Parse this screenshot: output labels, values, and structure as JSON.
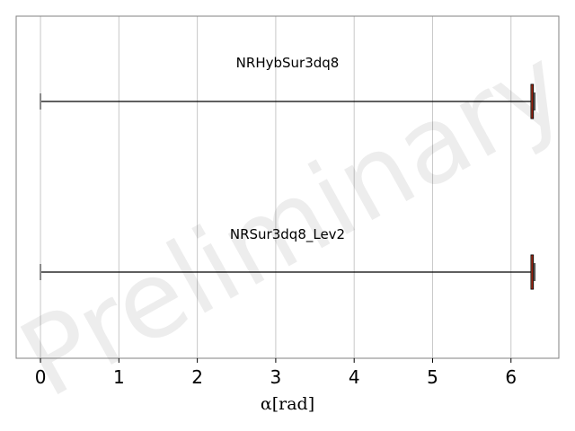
{
  "watermark": "Preliminary",
  "chart_data": {
    "type": "boxplot",
    "orientation": "horizontal",
    "xlabel": "α[rad]",
    "xlim": [
      -0.31,
      6.61
    ],
    "xticks": [
      0,
      1,
      2,
      3,
      4,
      5,
      6
    ],
    "xtick_labels": [
      "0",
      "1",
      "2",
      "3",
      "4",
      "5",
      "6"
    ],
    "grid": "vertical",
    "series": [
      {
        "name": "NRHybSur3dq8",
        "whisker_low": 0.0,
        "q1": 6.255,
        "median": 6.27,
        "q3": 6.285,
        "whisker_high": 6.285
      },
      {
        "name": "NRSur3dq8_Lev2",
        "whisker_low": 0.0,
        "q1": 6.255,
        "median": 6.27,
        "q3": 6.285,
        "whisker_high": 6.285
      }
    ],
    "colors": {
      "box_fill": "#f4a460",
      "box_edge": "#000000",
      "whisker": "#000000",
      "cap_low": "#888888",
      "grid": "#c8c8c8",
      "frame": "#808080"
    }
  }
}
